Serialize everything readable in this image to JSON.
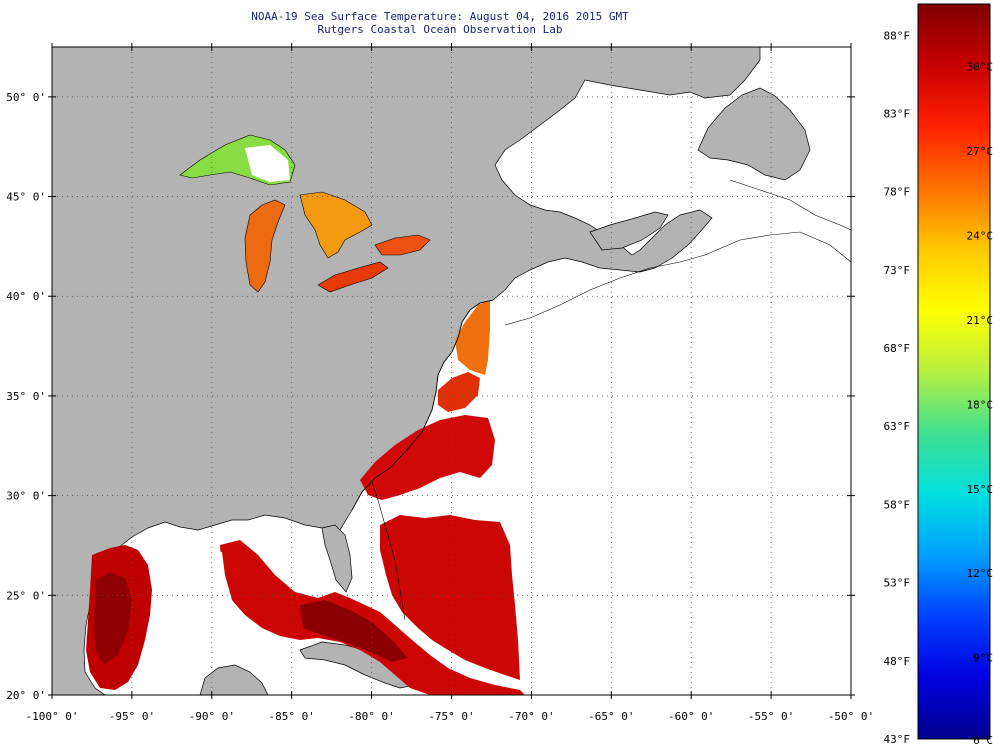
{
  "header": {
    "title": "NOAA-19 Sea Surface Temperature:  August 04, 2016 2015 GMT",
    "subtitle": "Rutgers Coastal Ocean Observation Lab"
  },
  "map": {
    "lon_range": [
      -100,
      -50
    ],
    "lat_range": [
      20,
      52.5
    ],
    "lon_ticks": [
      {
        "value": -100,
        "label": "-100° 0'"
      },
      {
        "value": -95,
        "label": "-95° 0'"
      },
      {
        "value": -90,
        "label": "-90° 0'"
      },
      {
        "value": -85,
        "label": "-85° 0'"
      },
      {
        "value": -80,
        "label": "-80° 0'"
      },
      {
        "value": -75,
        "label": "-75° 0'"
      },
      {
        "value": -70,
        "label": "-70° 0'"
      },
      {
        "value": -65,
        "label": "-65° 0'"
      },
      {
        "value": -60,
        "label": "-60° 0'"
      },
      {
        "value": -55,
        "label": "-55° 0'"
      },
      {
        "value": -50,
        "label": "-50° 0'"
      }
    ],
    "lat_ticks": [
      {
        "value": 20,
        "label": "20° 0'"
      },
      {
        "value": 25,
        "label": "25° 0'"
      },
      {
        "value": 30,
        "label": "30° 0'"
      },
      {
        "value": 35,
        "label": "35° 0'"
      },
      {
        "value": 40,
        "label": "40° 0'"
      },
      {
        "value": 45,
        "label": "45° 0'"
      },
      {
        "value": 50,
        "label": "50° 0'"
      }
    ],
    "colors": {
      "land": "#b3b3b3",
      "no_data": "#ffffff",
      "grid": "#555555",
      "coast": "#000000"
    }
  },
  "colorbar": {
    "fahrenheit": [
      {
        "value": 88,
        "label": "88°F"
      },
      {
        "value": 83,
        "label": "83°F"
      },
      {
        "value": 78,
        "label": "78°F"
      },
      {
        "value": 73,
        "label": "73°F"
      },
      {
        "value": 68,
        "label": "68°F"
      },
      {
        "value": 63,
        "label": "63°F"
      },
      {
        "value": 58,
        "label": "58°F"
      },
      {
        "value": 53,
        "label": "53°F"
      },
      {
        "value": 48,
        "label": "48°F"
      },
      {
        "value": 43,
        "label": "43°F"
      }
    ],
    "celsius": [
      {
        "value": 30,
        "label": "30°C"
      },
      {
        "value": 27,
        "label": "27°C"
      },
      {
        "value": 24,
        "label": "24°C"
      },
      {
        "value": 21,
        "label": "21°C"
      },
      {
        "value": 18,
        "label": "18°C"
      },
      {
        "value": 15,
        "label": "15°C"
      },
      {
        "value": 12,
        "label": "12°C"
      },
      {
        "value": 9,
        "label": "9°C"
      },
      {
        "value": 6,
        "label": "6°C"
      }
    ],
    "gradient": [
      "#7f0000",
      "#c80000",
      "#ff2000",
      "#ff7000",
      "#ffc800",
      "#ffff00",
      "#b8f040",
      "#40e090",
      "#00e0e0",
      "#00a0ff",
      "#0040ff",
      "#0000e0",
      "#00008f"
    ]
  }
}
